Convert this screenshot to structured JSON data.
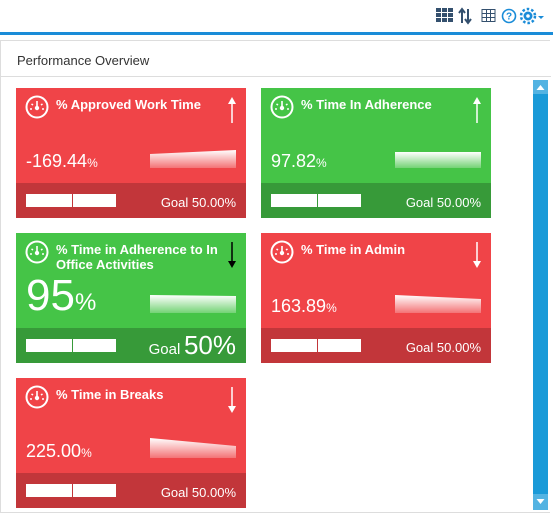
{
  "panel": {
    "title": "Performance Overview"
  },
  "tiles": [
    {
      "title": "% Approved Work Time",
      "value": "-169.44",
      "unit": "%",
      "goal_label": "Goal",
      "goal_value": "50.00%",
      "status": "red",
      "trend": "up",
      "large": false
    },
    {
      "title": "% Time In Adherence",
      "value": "97.82",
      "unit": "%",
      "goal_label": "Goal",
      "goal_value": "50.00%",
      "status": "green",
      "trend": "up",
      "large": false
    },
    {
      "title": "% Time in Adherence to In Office Activities",
      "value": "95",
      "unit": "%",
      "goal_label": "Goal",
      "goal_value": "50%",
      "status": "green",
      "trend": "down",
      "large": true
    },
    {
      "title": "% Time in Admin",
      "value": "163.89",
      "unit": "%",
      "goal_label": "Goal",
      "goal_value": "50.00%",
      "status": "red",
      "trend": "down",
      "large": false
    },
    {
      "title": "% Time in Breaks",
      "value": "225.00",
      "unit": "%",
      "goal_label": "Goal",
      "goal_value": "50.00%",
      "status": "red",
      "trend": "down",
      "large": false
    }
  ]
}
